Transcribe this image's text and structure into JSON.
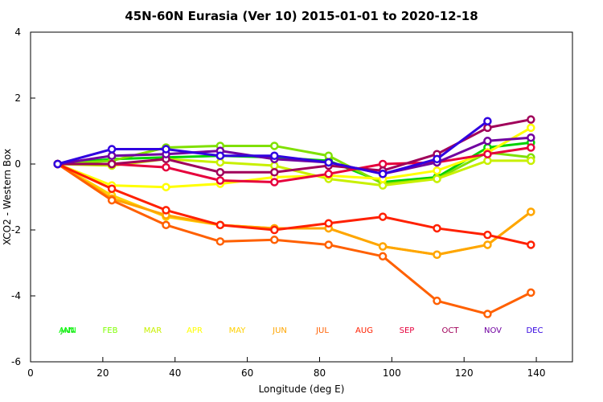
{
  "chart_data": {
    "type": "line",
    "title": "45N-60N Eurasia (Ver 10)   2015-01-01 to 2020-12-18",
    "xlabel": "Longitude (deg E)",
    "ylabel": "XCO2 - Western Box",
    "xlim": [
      0,
      150
    ],
    "ylim": [
      -6,
      4
    ],
    "xticks": [
      0,
      20,
      40,
      60,
      80,
      100,
      120,
      140
    ],
    "yticks": [
      -6,
      -4,
      -2,
      0,
      2,
      4
    ],
    "x": [
      7.5,
      22.5,
      37.5,
      52.5,
      67.5,
      82.5,
      97.5,
      112.5,
      126.5,
      138.5
    ],
    "series": [
      {
        "name": "JAN",
        "color": "#00d200",
        "values": [
          0,
          0.15,
          0.2,
          0.25,
          0.2,
          0.1,
          -0.55,
          -0.4,
          0.5,
          0.65
        ]
      },
      {
        "name": "FEB",
        "color": "#7fe000",
        "values": [
          0,
          0.1,
          0.5,
          0.55,
          0.55,
          0.25,
          -0.6,
          -0.45,
          0.35,
          0.2
        ]
      },
      {
        "name": "MAR",
        "color": "#c8f000",
        "values": [
          0,
          -0.05,
          0.15,
          0.05,
          -0.05,
          -0.45,
          -0.65,
          -0.45,
          0.1,
          0.1
        ]
      },
      {
        "name": "APR",
        "color": "#ffff00",
        "values": [
          0,
          -0.65,
          -0.7,
          -0.6,
          -0.4,
          -0.35,
          -0.45,
          -0.2,
          0.35,
          1.1
        ]
      },
      {
        "name": "MAY",
        "color": "#ffd000",
        "values": [
          0,
          -0.95,
          -1.6,
          -1.85,
          -1.95,
          -1.95,
          -2.5,
          -2.75,
          -2.45,
          -1.45
        ]
      },
      {
        "name": "JUN",
        "color": "#ffa500",
        "values": [
          0,
          -1.05,
          -1.55,
          -1.85,
          -1.95,
          -1.95,
          -2.5,
          -2.75,
          -2.45,
          -1.45
        ]
      },
      {
        "name": "JUL",
        "color": "#ff6000",
        "values": [
          0,
          -1.1,
          -1.85,
          -2.35,
          -2.3,
          -2.45,
          -2.8,
          -4.15,
          -4.55,
          -3.9
        ]
      },
      {
        "name": "AUG",
        "color": "#ff2000",
        "values": [
          0,
          -0.75,
          -1.4,
          -1.85,
          -2.0,
          -1.8,
          -1.6,
          -1.95,
          -2.15,
          -2.45
        ]
      },
      {
        "name": "SEP",
        "color": "#e6003c",
        "values": [
          0,
          0,
          -0.1,
          -0.5,
          -0.55,
          -0.3,
          0,
          0.05,
          0.3,
          0.5
        ]
      },
      {
        "name": "OCT",
        "color": "#a0005a",
        "values": [
          0,
          0,
          0.15,
          -0.25,
          -0.25,
          -0.05,
          -0.2,
          0.3,
          1.1,
          1.35
        ]
      },
      {
        "name": "NOV",
        "color": "#7000a0",
        "values": [
          0,
          0.25,
          0.3,
          0.4,
          0.15,
          0.05,
          -0.3,
          0.05,
          0.7,
          0.8
        ]
      },
      {
        "name": "DEC",
        "color": "#3000e0",
        "values": [
          0,
          0.45,
          0.45,
          0.25,
          0.25,
          0.05,
          -0.3,
          0.15,
          1.3,
          null
        ]
      }
    ],
    "legend_labels": [
      {
        "text": "JAN",
        "color": "#00d200"
      },
      {
        "text": "ANN",
        "color": "#00ff00"
      },
      {
        "text": "FEB",
        "color": "#7fff00"
      },
      {
        "text": "MAR",
        "color": "#c8f000"
      },
      {
        "text": "APR",
        "color": "#ffff00"
      },
      {
        "text": "MAY",
        "color": "#ffd000"
      },
      {
        "text": "JUN",
        "color": "#ffa500"
      },
      {
        "text": "JUL",
        "color": "#ff6000"
      },
      {
        "text": "AUG",
        "color": "#ff2000"
      },
      {
        "text": "SEP",
        "color": "#e6003c"
      },
      {
        "text": "OCT",
        "color": "#a0005a"
      },
      {
        "text": "NOV",
        "color": "#7000a0"
      },
      {
        "text": "DEC",
        "color": "#3000e0"
      }
    ],
    "legend_placement": "bottom",
    "grid": false
  }
}
